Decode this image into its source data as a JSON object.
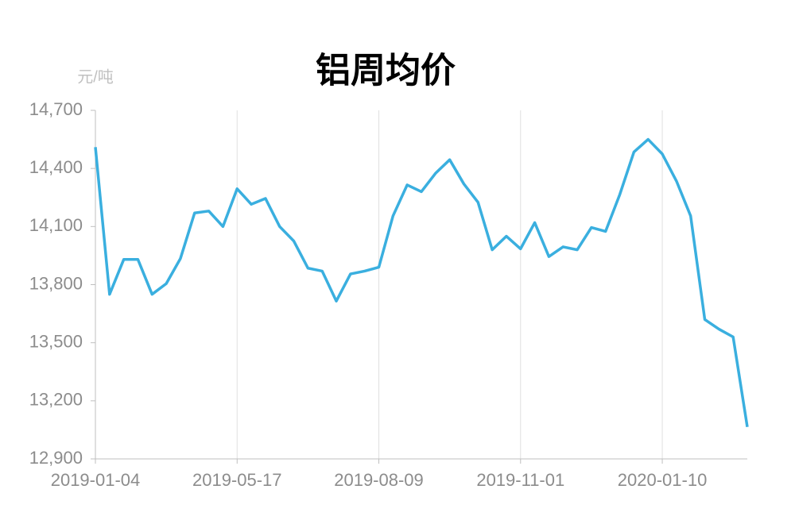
{
  "chart_data": {
    "type": "line",
    "title": "铝周均价",
    "y_label": "元/吨",
    "categories": [
      "2019-01-04",
      null,
      null,
      null,
      null,
      null,
      null,
      null,
      null,
      null,
      "2019-05-17",
      null,
      null,
      null,
      null,
      null,
      null,
      null,
      null,
      null,
      "2019-08-09",
      null,
      null,
      null,
      null,
      null,
      null,
      null,
      null,
      null,
      "2019-11-01",
      null,
      null,
      null,
      null,
      null,
      null,
      null,
      null,
      null,
      "2020-01-10",
      null,
      null,
      null,
      null,
      null,
      null
    ],
    "values": [
      14510,
      13750,
      13930,
      13930,
      13750,
      13805,
      13935,
      14170,
      14180,
      14100,
      14295,
      14215,
      14245,
      14100,
      14025,
      13885,
      13870,
      13715,
      13855,
      13870,
      13890,
      14155,
      14315,
      14280,
      14375,
      14445,
      14320,
      14225,
      13980,
      14050,
      13985,
      14120,
      13945,
      13995,
      13980,
      14095,
      14075,
      14265,
      14485,
      14550,
      14475,
      14335,
      14155,
      13620,
      13570,
      13530,
      13065
    ],
    "color": "#3aafdf",
    "ylim": [
      12900,
      14700
    ],
    "yticks": [
      {
        "value": 12900,
        "label": "12,900"
      },
      {
        "value": 13200,
        "label": "13,200"
      },
      {
        "value": 13500,
        "label": "13,500"
      },
      {
        "value": 13800,
        "label": "13,800"
      },
      {
        "value": 14100,
        "label": "14,100"
      },
      {
        "value": 14400,
        "label": "14,400"
      },
      {
        "value": 14700,
        "label": "14,700"
      }
    ],
    "grid": true
  }
}
